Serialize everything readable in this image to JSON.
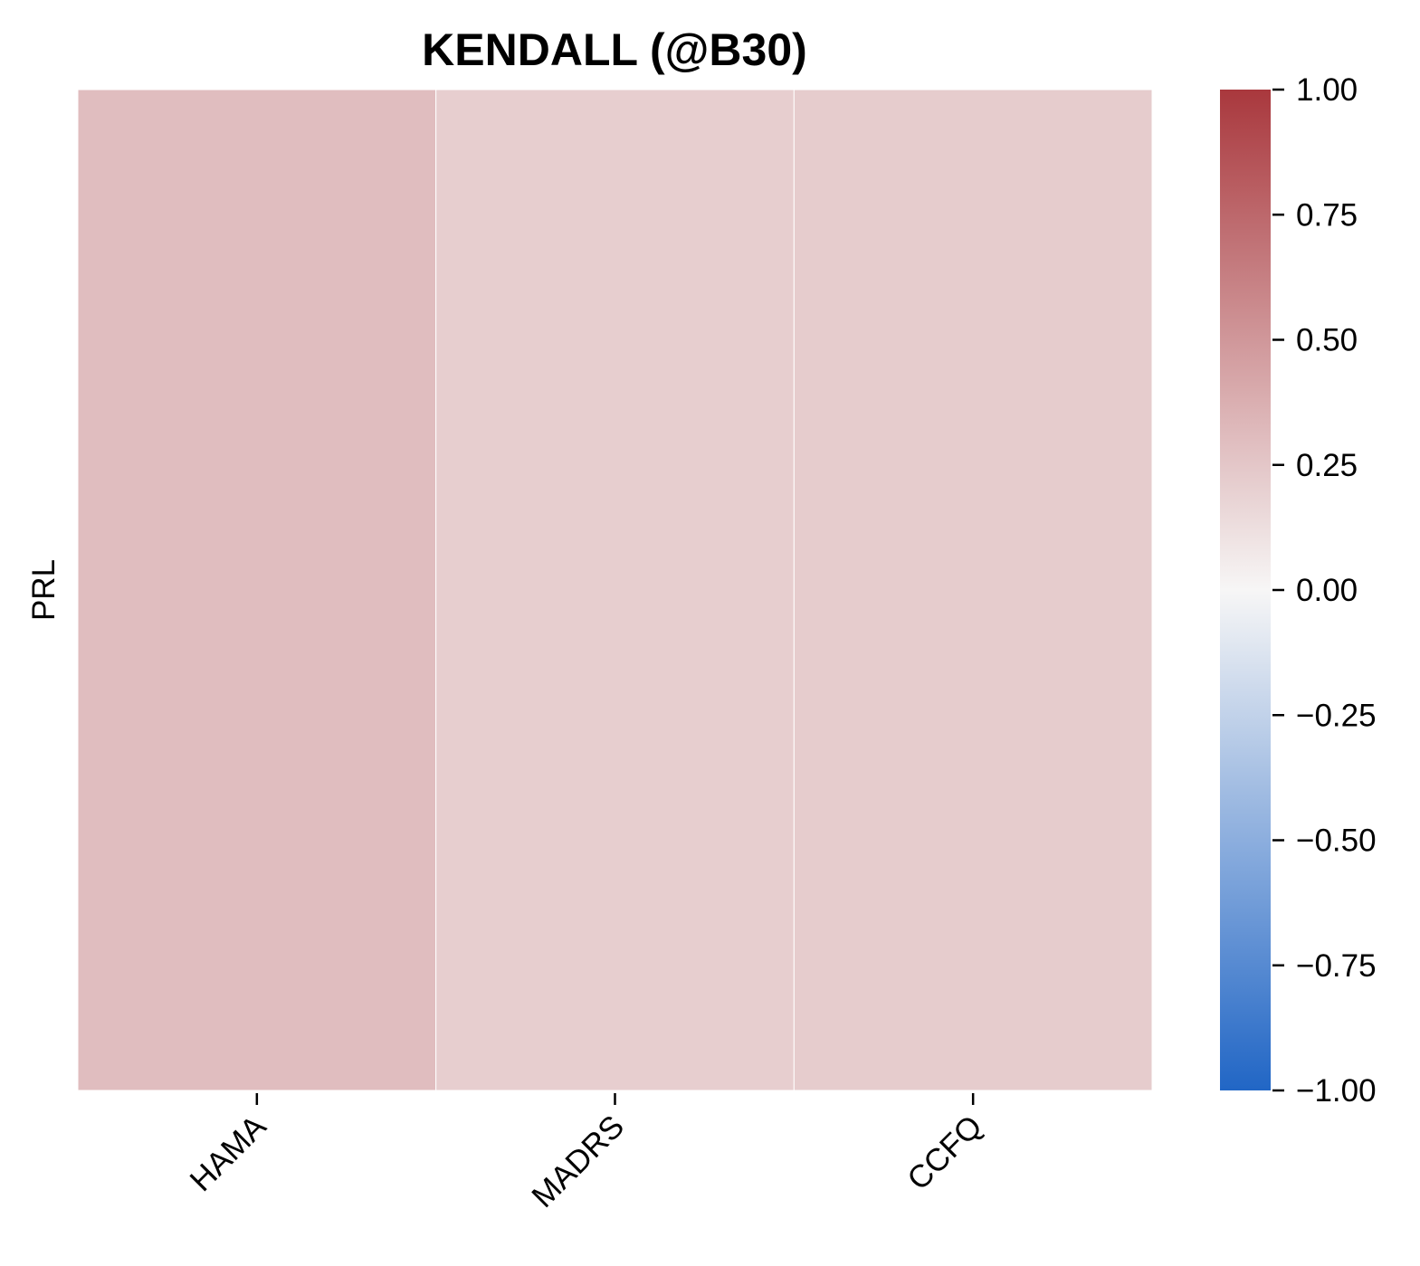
{
  "chart_data": {
    "type": "heatmap",
    "title": "KENDALL (@B30)",
    "rows": [
      "PRL"
    ],
    "columns": [
      "HAMA",
      "MADRS",
      "CCFQ"
    ],
    "values": [
      [
        0.3,
        0.21,
        0.22
      ]
    ],
    "colormap": "vlag",
    "color_range": [
      -1.0,
      1.0
    ],
    "colorbar_ticks": [
      "1.00",
      "0.75",
      "0.50",
      "0.25",
      "0.00",
      "−0.25",
      "−0.50",
      "−0.75",
      "−1.00"
    ],
    "colorbar_tick_values": [
      1.0,
      0.75,
      0.5,
      0.25,
      0.0,
      -0.25,
      -0.5,
      -0.75,
      -1.0
    ],
    "colors": {
      "low": "#2166c5",
      "mid": "#f7f6f6",
      "high": "#a9383d",
      "cell_border": "#ffffff"
    },
    "grid": false,
    "colorbar_position": "right"
  }
}
